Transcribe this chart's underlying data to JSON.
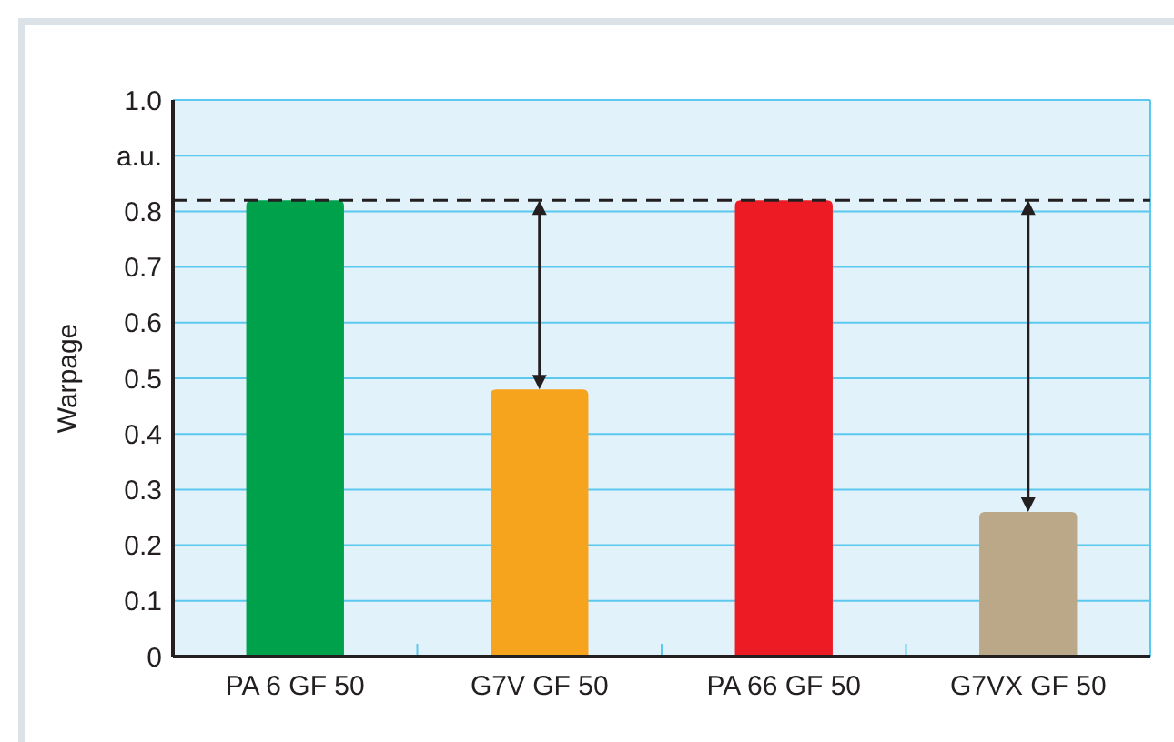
{
  "chart_data": {
    "type": "bar",
    "ylabel": "Warpage",
    "categories": [
      "PA 6 GF 50",
      "G7V GF 50",
      "PA 66 GF 50",
      "G7VX GF 50"
    ],
    "values": [
      0.82,
      0.48,
      0.82,
      0.26
    ],
    "colors": [
      "#00a14b",
      "#f6a31d",
      "#ed1c24",
      "#bba888"
    ],
    "ylim": [
      0,
      1.0
    ],
    "yticks": [
      0,
      0.1,
      0.2,
      0.3,
      0.4,
      0.5,
      0.6,
      0.7,
      0.8,
      {
        "value": 0.9,
        "label": "a.u."
      },
      {
        "value": 1.0,
        "label": "1.0"
      }
    ],
    "grid": "y",
    "ref_lines": [
      {
        "axis": "y",
        "value": 0.82,
        "line_style": "dashed",
        "color": "#231f20"
      }
    ]
  }
}
